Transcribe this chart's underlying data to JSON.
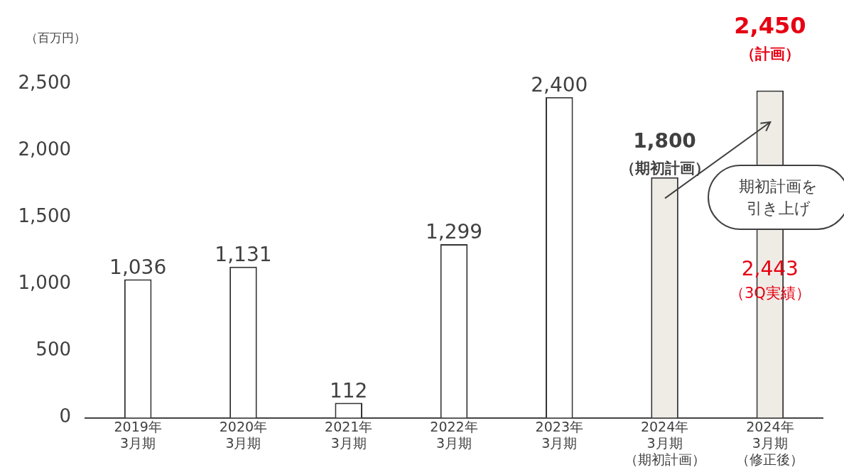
{
  "chart_data": {
    "type": "bar",
    "ylabel": "（百万円）",
    "categories": [
      "2019年3月期",
      "2020年3月期",
      "2021年3月期",
      "2022年3月期",
      "2023年3月期",
      "2024年3月期（期初計画）",
      "2024年3月期（修正後）"
    ],
    "values": [
      1036,
      1131,
      112,
      1299,
      2400,
      1800,
      2450
    ],
    "colors": [
      "#ffffff",
      "#ffffff",
      "#ffffff",
      "#ffffff",
      "#ffffff",
      "#efece6",
      "#efece6"
    ],
    "value_labels": [
      "1,036",
      "1,131",
      "112",
      "1,299",
      "2,400",
      "1,800（期初計画）",
      "2,450（計画）"
    ],
    "annotations": [
      "期初計画を引き上げ",
      "2,443（3Q実績）"
    ],
    "ylim": [
      0,
      2500
    ],
    "yticks": [
      0,
      500,
      {
        "value": 1000,
        "label": "1,000"
      },
      {
        "value": 1500,
        "label": "1,500"
      },
      {
        "value": 2000,
        "label": "2,000"
      },
      {
        "value": 2500,
        "label": "2,500"
      }
    ],
    "grid": false,
    "legend": false
  }
}
